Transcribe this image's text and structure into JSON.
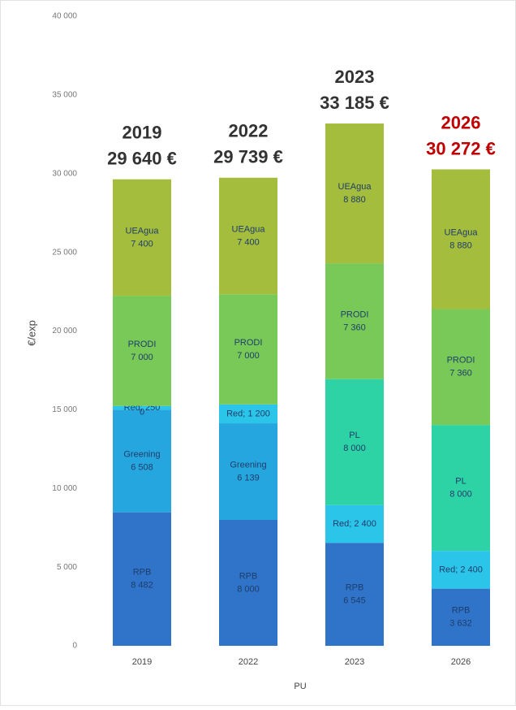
{
  "chart_data": {
    "type": "stacked_bar",
    "categories": [
      "2019",
      "2022",
      "2023",
      "2026"
    ],
    "series": [
      {
        "name": "RPB",
        "color": "#2f74c9",
        "values": [
          8482,
          8000,
          6545,
          3632
        ],
        "value_labels": [
          "8 482",
          "8 000",
          "6 545",
          "3 632"
        ]
      },
      {
        "name": "Greening",
        "color": "#26a6de",
        "values": [
          6508,
          6139,
          null,
          null
        ],
        "value_labels": [
          "6 508",
          "6 139",
          null,
          null
        ]
      },
      {
        "name": "Red",
        "color": "#2cc5ea",
        "values": [
          250,
          1200,
          2400,
          2400
        ],
        "value_labels": [
          "Red; 250",
          "Red; 1 200",
          "Red; 2 400",
          "Red; 2 400"
        ]
      },
      {
        "name": "PL",
        "color": "#2ed3a5",
        "values": [
          0,
          null,
          8000,
          8000
        ],
        "value_labels": [
          "0",
          null,
          "8 000",
          "8 000"
        ]
      },
      {
        "name": "PRODI",
        "color": "#78c957",
        "values": [
          7000,
          7000,
          7360,
          7360
        ],
        "value_labels": [
          "7 000",
          "7 000",
          "7 360",
          "7 360"
        ]
      },
      {
        "name": "UEAgua",
        "color": "#a4bd3c",
        "values": [
          7400,
          7400,
          8880,
          8880
        ],
        "value_labels": [
          "7 400",
          "7 400",
          "8 880",
          "8 880"
        ]
      }
    ],
    "totals": [
      29640,
      29739,
      33185,
      30272
    ],
    "total_labels": [
      "29 640 €",
      "29 739 €",
      "33 185 €",
      "30 272 €"
    ],
    "total_colors": [
      "#333333",
      "#333333",
      "#333333",
      "#c00000"
    ],
    "ylabel": "€/exp",
    "xlabel": "PU",
    "ylim": [
      0,
      40000
    ],
    "yticks": [
      0,
      {
        "value": 5000,
        "label": "5 000"
      },
      {
        "value": 10000,
        "label": "10 000"
      },
      {
        "value": 15000,
        "label": "15 000"
      },
      {
        "value": 20000,
        "label": "20 000"
      },
      {
        "value": 25000,
        "label": "25 000"
      },
      {
        "value": 30000,
        "label": "30 000"
      },
      {
        "value": 35000,
        "label": "35 000"
      },
      {
        "value": 40000,
        "label": "40 000"
      }
    ],
    "grid": false
  }
}
